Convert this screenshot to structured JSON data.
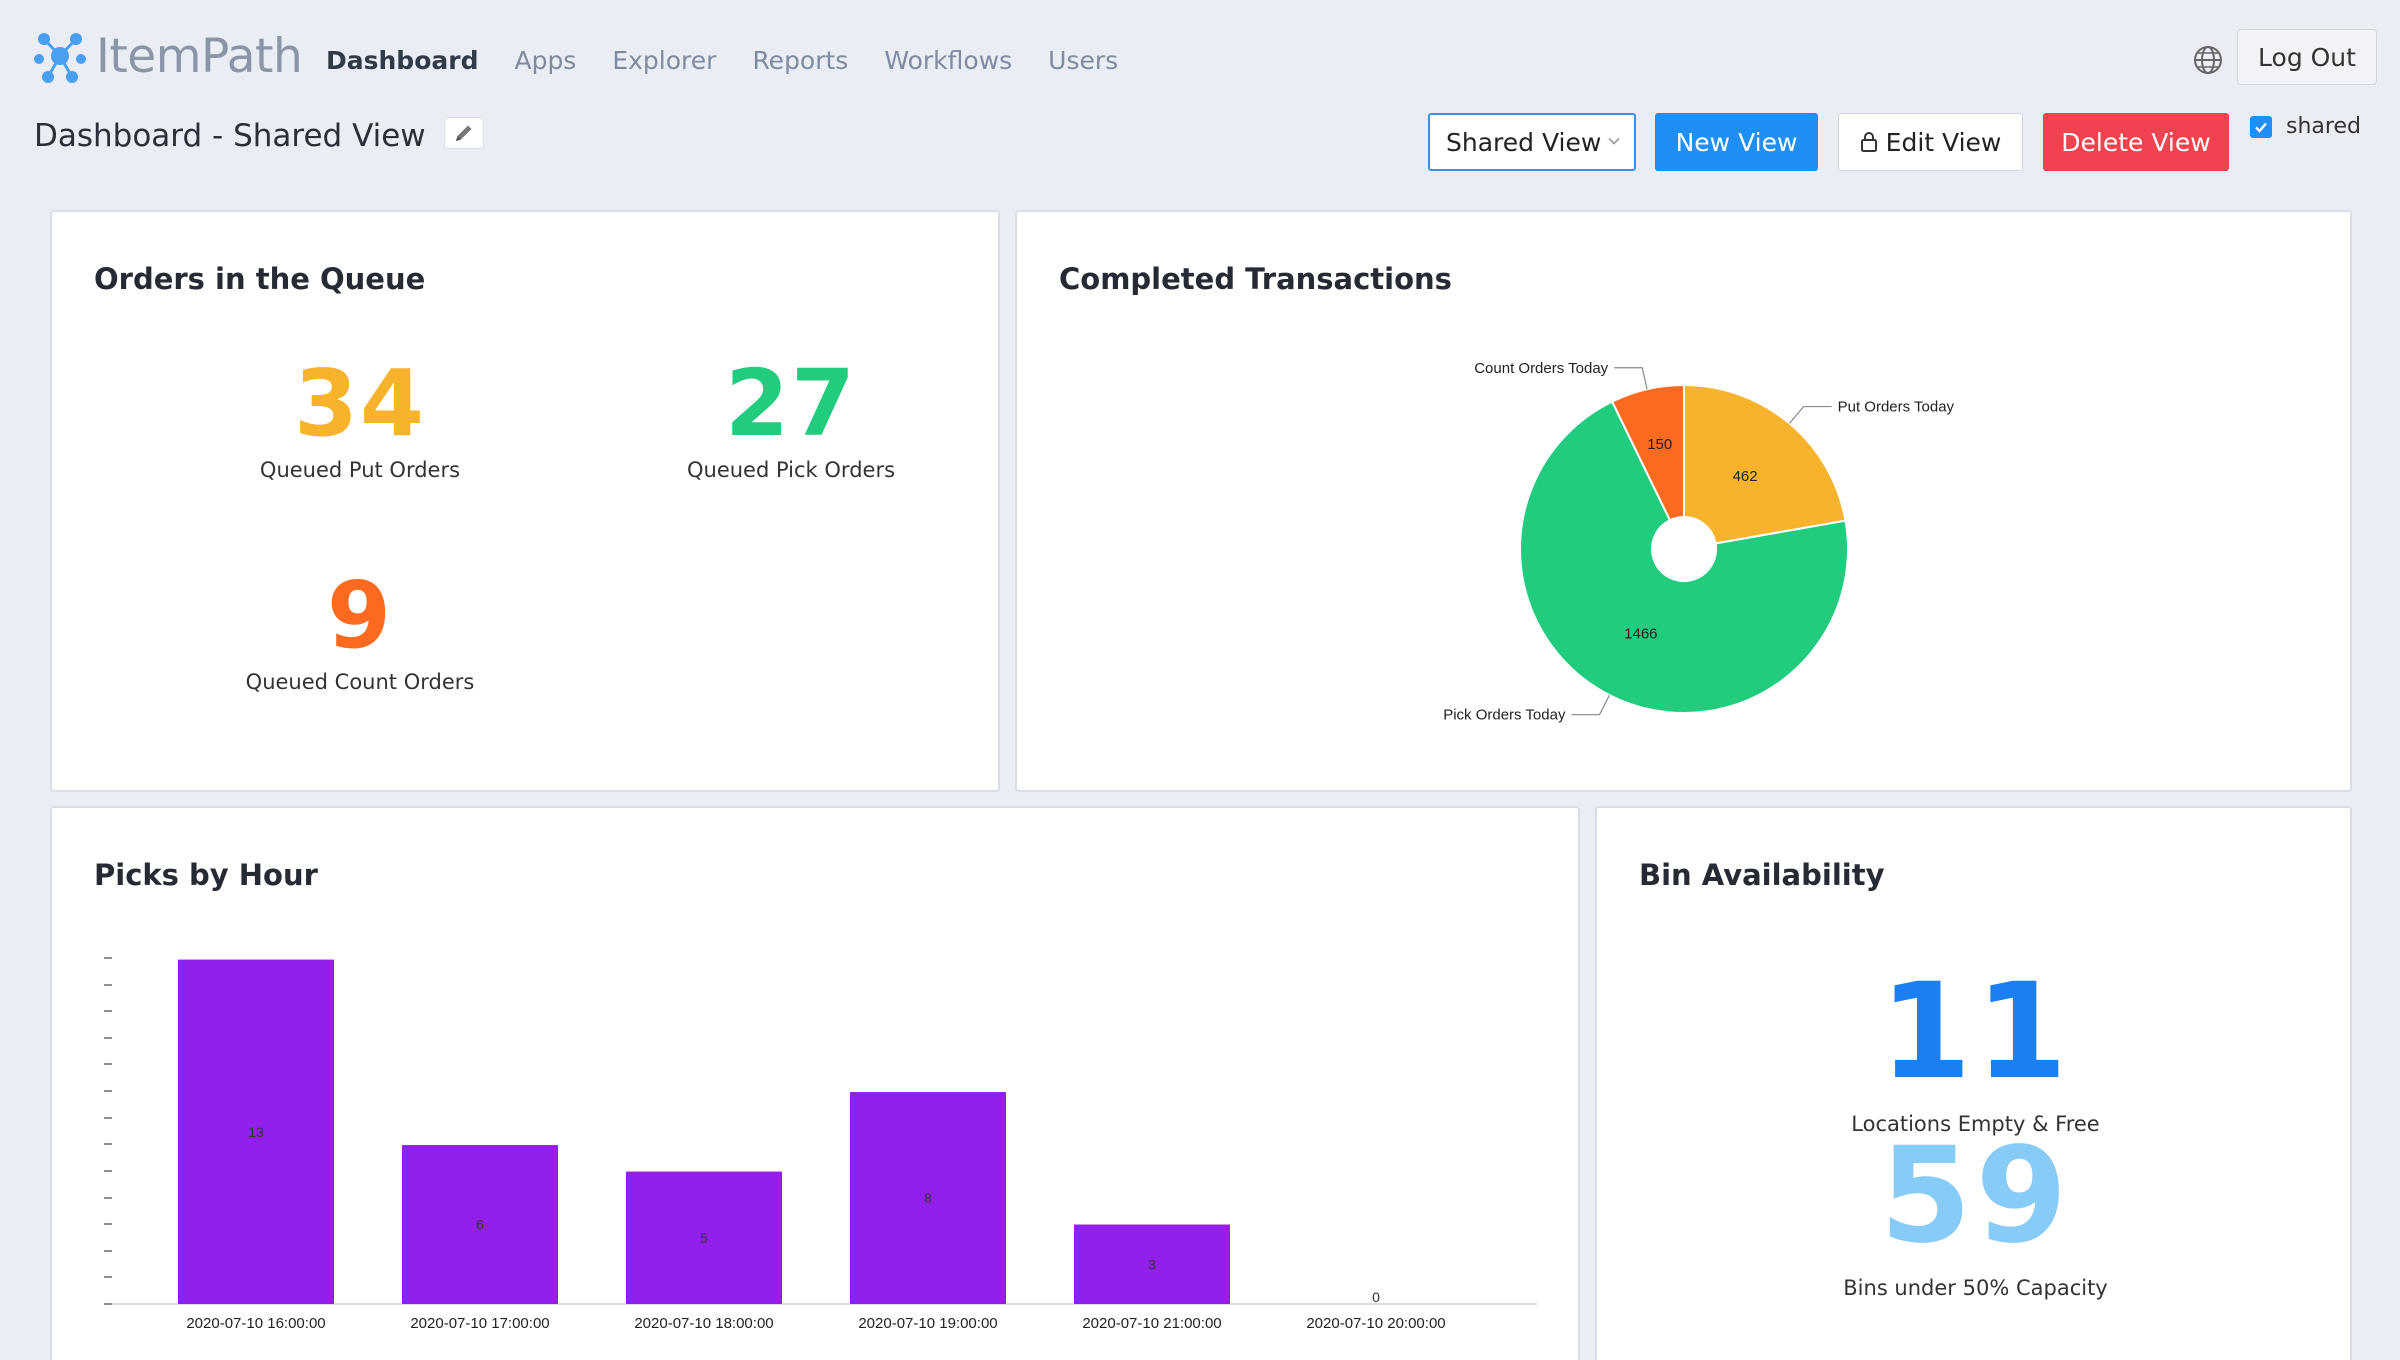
{
  "app": {
    "name": "ItemPath"
  },
  "nav": [
    {
      "label": "Dashboard",
      "active": true
    },
    {
      "label": "Apps"
    },
    {
      "label": "Explorer"
    },
    {
      "label": "Reports"
    },
    {
      "label": "Workflows"
    },
    {
      "label": "Users"
    }
  ],
  "header": {
    "logout_label": "Log Out",
    "language_icon": "globe-icon"
  },
  "page": {
    "title": "Dashboard - Shared View",
    "edit_icon": "pencil-icon"
  },
  "toolbar": {
    "view_select_value": "Shared View",
    "new_view_label": "New View",
    "edit_view_label": "Edit View",
    "delete_view_label": "Delete View",
    "shared_label": "shared",
    "shared_checked": true
  },
  "colors": {
    "accent": "#1f8ef5",
    "danger": "#f2414f",
    "orange": "#f7b32b",
    "green": "#22cc7f",
    "red_orange": "#fb6a1e",
    "purple": "#9320ea",
    "blue": "#1a7ff3",
    "light_blue": "#87cbf7"
  },
  "orders_queue": {
    "title": "Orders in the Queue",
    "metrics": [
      {
        "value": "34",
        "label": "Queued Put Orders",
        "color": "#f7b32b"
      },
      {
        "value": "27",
        "label": "Queued Pick Orders",
        "color": "#22cc7f"
      },
      {
        "value": "9",
        "label": "Queued Count Orders",
        "color": "#fb6a1e"
      }
    ]
  },
  "completed_transactions": {
    "title": "Completed Transactions",
    "chart_data": {
      "type": "pie",
      "donut": true,
      "slices": [
        {
          "label": "Put Orders Today",
          "value": 462,
          "color": "#f7b32b"
        },
        {
          "label": "Pick Orders Today",
          "value": 1466,
          "color": "#22cc7f"
        },
        {
          "label": "Count Orders Today",
          "value": 150,
          "color": "#fb6a1e"
        }
      ]
    }
  },
  "picks_by_hour": {
    "title": "Picks by Hour",
    "chart_data": {
      "type": "bar",
      "categories": [
        "2020-07-10 16:00:00",
        "2020-07-10 17:00:00",
        "2020-07-10 18:00:00",
        "2020-07-10 19:00:00",
        "2020-07-10 21:00:00",
        "2020-07-10 20:00:00"
      ],
      "values": [
        13,
        6,
        5,
        8,
        3,
        0
      ],
      "ylim": [
        0,
        13.4
      ],
      "color": "#9320ea",
      "data_labels": true
    }
  },
  "bin_availability": {
    "title": "Bin Availability",
    "metrics": [
      {
        "value": "11",
        "label": "Locations Empty & Free",
        "color": "#1a7ff3"
      },
      {
        "value": "59",
        "label": "Bins under 50% Capacity",
        "color": "#87cbf7"
      }
    ]
  }
}
